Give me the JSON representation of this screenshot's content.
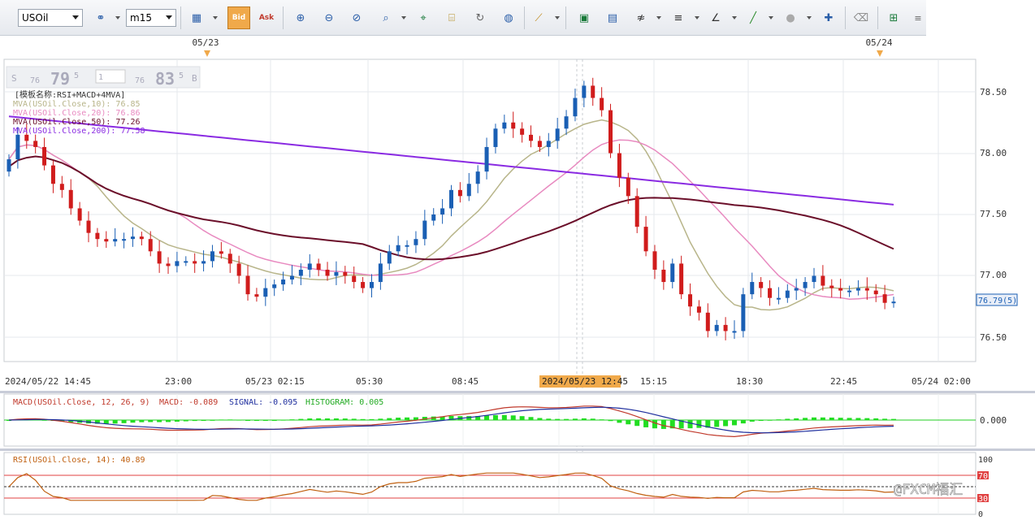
{
  "toolbar": {
    "symbol": "USOil",
    "timeframe": "m15",
    "buttons": [
      {
        "name": "link-chart-icon",
        "glyph": "⚭"
      },
      {
        "name": "chart-type-icon",
        "glyph": "▦"
      },
      {
        "name": "bid-button",
        "glyph": "Bid",
        "active": true
      },
      {
        "name": "ask-button",
        "glyph": "Ask"
      },
      {
        "name": "zoom-in-icon",
        "glyph": "⊕"
      },
      {
        "name": "zoom-out-icon",
        "glyph": "⊖"
      },
      {
        "name": "zoom-reset-icon",
        "glyph": "⊘"
      },
      {
        "name": "zoom-area-icon",
        "glyph": "⌕"
      },
      {
        "name": "crosshair-icon",
        "glyph": "⌖"
      },
      {
        "name": "data-window-icon",
        "glyph": "⌸"
      },
      {
        "name": "refresh-icon",
        "glyph": "↻"
      },
      {
        "name": "globe-icon",
        "glyph": "◍"
      },
      {
        "name": "ruler-icon",
        "glyph": "⟋"
      },
      {
        "name": "snapshot-icon",
        "glyph": "▣"
      },
      {
        "name": "image-icon",
        "glyph": "▤"
      },
      {
        "name": "fibonacci-icon",
        "glyph": "≉"
      },
      {
        "name": "lines-icon",
        "glyph": "≡"
      },
      {
        "name": "angle-icon",
        "glyph": "∠"
      },
      {
        "name": "draw-line-icon",
        "glyph": "╱"
      },
      {
        "name": "shape-icon",
        "glyph": "●"
      },
      {
        "name": "add-text-icon",
        "glyph": "✚"
      },
      {
        "name": "eraser-icon",
        "glyph": "⌫"
      },
      {
        "name": "indicators-icon",
        "glyph": "⊞"
      },
      {
        "name": "menu-icon",
        "glyph": "≡"
      }
    ]
  },
  "markers": {
    "left": "05/23",
    "right": "05/24"
  },
  "quote": {
    "s_label": "S",
    "bid_big": "76",
    "bid_main": "79",
    "bid_sup": "5",
    "qty": "1",
    "ask_big": "76",
    "ask_main": "83",
    "ask_sup": "5",
    "b_label": "B"
  },
  "legend": {
    "template": "[模板名称:RSI+MACD+4MVA]",
    "lines": [
      {
        "text": "MVA(USOil.Close,10): 76.85",
        "color": "#b8b58a"
      },
      {
        "text": "MVA(USOil.Close,20): 76.86",
        "color": "#e88ac0"
      },
      {
        "text": "MVA(USOil.Close,50): 77.26",
        "color": "#6b0f2a"
      },
      {
        "text": "MVA(USOil.Close,200): 77.58",
        "color": "#8a2be2"
      }
    ]
  },
  "price_axis": {
    "ticks": [
      "78.50",
      "78.00",
      "77.50",
      "77.00",
      "76.50"
    ],
    "current": "76.79(5)"
  },
  "time_axis": {
    "labels": [
      "2024/05/22 14:45",
      "23:00",
      "05/23 02:15",
      "05:30",
      "08:45",
      "2024/05/23 12:45",
      "15:15",
      "18:30",
      "22:45",
      "05/24 02:00"
    ]
  },
  "macd": {
    "header": "MACD(USOil.Close, 12, 26, 9)",
    "macd_label": "MACD: -0.089",
    "signal_label": "SIGNAL: -0.095",
    "hist_label": "HISTOGRAM: 0.005",
    "axis": "0.000"
  },
  "rsi": {
    "header": "RSI(USOil.Close, 14): 40.89",
    "axis": [
      "100",
      "70",
      "30",
      "0"
    ]
  },
  "watermark": "@FXCM福汇",
  "colors": {
    "up": "#1a5fb4",
    "down": "#d01c1c",
    "mva10": "#b8b58a",
    "mva20": "#e88ac0",
    "mva50": "#6b0f2a",
    "mva200": "#8a2be2",
    "macd": "#c0392b",
    "signal": "#1f2f9e",
    "hist": "#22dd22",
    "rsi": "#c06010",
    "accent": "#f0a94a"
  }
}
